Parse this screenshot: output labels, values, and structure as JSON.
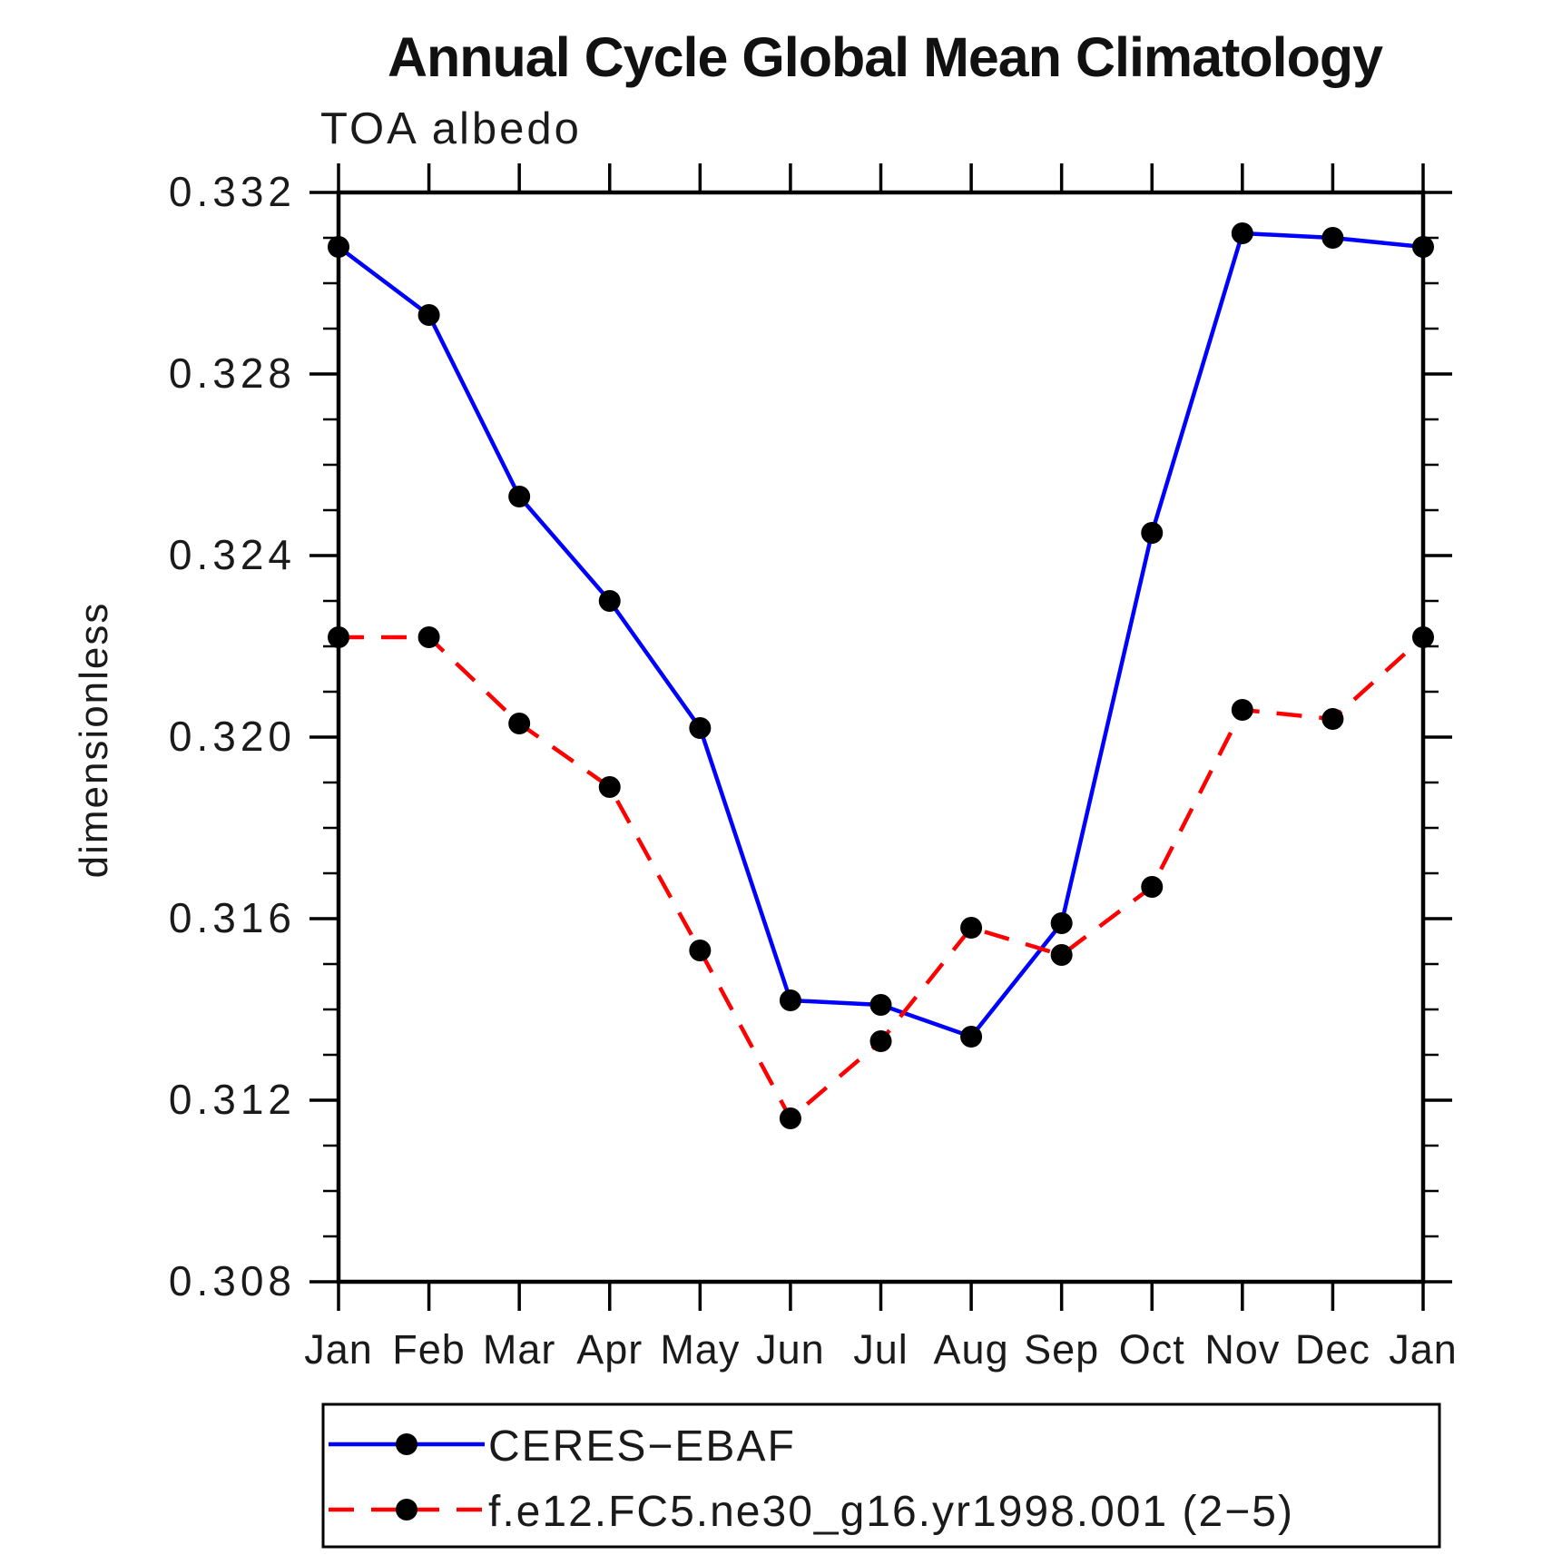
{
  "chart_data": {
    "type": "line",
    "title": "Annual Cycle Global Mean Climatology",
    "subtitle": "TOA albedo",
    "ylabel": "dimensionless",
    "categories": [
      "Jan",
      "Feb",
      "Mar",
      "Apr",
      "May",
      "Jun",
      "Jul",
      "Aug",
      "Sep",
      "Oct",
      "Nov",
      "Dec",
      "Jan"
    ],
    "ylim": [
      0.308,
      0.332
    ],
    "ytick_major_step": 0.004,
    "ytick_minor_step": 0.001,
    "ytick_labels": [
      "0.308",
      "0.312",
      "0.316",
      "0.320",
      "0.324",
      "0.328",
      "0.332"
    ],
    "grid": false,
    "legend_position": "bottom",
    "axis_color": "#000000",
    "marker_color": "#000000",
    "series": [
      {
        "name": "CERES−EBAF",
        "color": "#0000ff",
        "style": "solid",
        "marker": "circle",
        "values": [
          0.3308,
          0.3293,
          0.3253,
          0.323,
          0.3202,
          0.3142,
          0.3141,
          0.3134,
          0.3159,
          0.3245,
          0.3311,
          0.331,
          0.3308
        ]
      },
      {
        "name": "f.e12.FC5.ne30_g16.yr1998.001 (2−5)",
        "color": "#ff0000",
        "style": "dashed",
        "marker": "circle",
        "values": [
          0.3222,
          0.3222,
          0.3203,
          0.3189,
          0.3153,
          0.3116,
          0.3133,
          0.3158,
          0.3152,
          0.3167,
          0.3206,
          0.3204,
          0.3222
        ]
      }
    ]
  }
}
